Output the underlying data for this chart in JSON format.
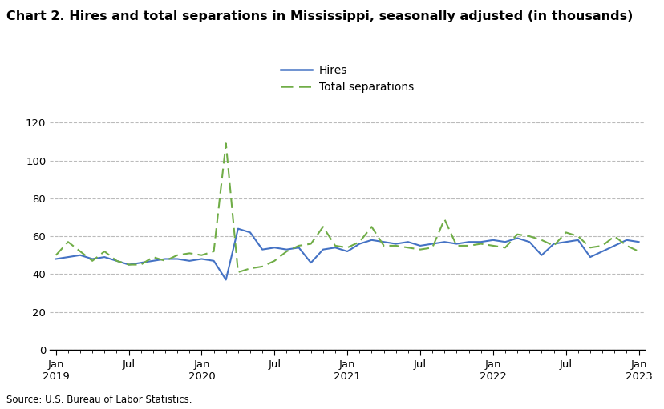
{
  "title": "Chart 2. Hires and total separations in Mississippi, seasonally adjusted (in thousands)",
  "source": "Source: U.S. Bureau of Labor Statistics.",
  "hires_label": "Hires",
  "separations_label": "Total separations",
  "hires_color": "#4472C4",
  "separations_color": "#70AD47",
  "ylim": [
    0,
    120
  ],
  "yticks": [
    0,
    20,
    40,
    60,
    80,
    100,
    120
  ],
  "hires": [
    48,
    49,
    50,
    48,
    49,
    47,
    45,
    46,
    47,
    48,
    48,
    47,
    48,
    47,
    37,
    64,
    62,
    53,
    54,
    53,
    54,
    46,
    53,
    54,
    52,
    56,
    58,
    57,
    56,
    57,
    55,
    56,
    57,
    56,
    57,
    57,
    58,
    57,
    59,
    57,
    50,
    56,
    57,
    58,
    49,
    52,
    55,
    58,
    57
  ],
  "separations": [
    50,
    57,
    52,
    47,
    52,
    47,
    45,
    45,
    49,
    47,
    50,
    51,
    50,
    52,
    109,
    41,
    43,
    44,
    47,
    52,
    55,
    56,
    65,
    55,
    54,
    57,
    65,
    55,
    55,
    54,
    53,
    54,
    69,
    55,
    55,
    56,
    55,
    54,
    61,
    60,
    58,
    55,
    62,
    60,
    54,
    55,
    60,
    55,
    52
  ],
  "n_months": 49,
  "background_color": "#ffffff",
  "grid_color": "#bbbbbb",
  "title_fontsize": 11.5,
  "legend_fontsize": 10,
  "tick_fontsize": 9.5
}
